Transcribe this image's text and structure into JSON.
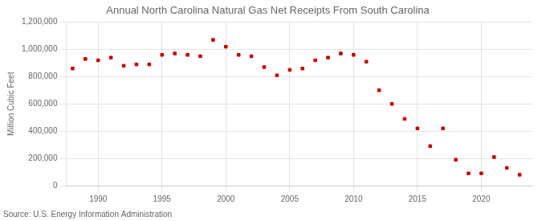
{
  "chart_data": {
    "type": "scatter",
    "title": "Annual North Carolina Natural Gas Net Receipts From South Carolina",
    "ylabel": "Million Cubic Feet",
    "source": "Source: U.S. Energy Information Administration",
    "x": [
      1988,
      1989,
      1990,
      1991,
      1992,
      1993,
      1994,
      1995,
      1996,
      1997,
      1998,
      1999,
      2000,
      2001,
      2002,
      2003,
      2004,
      2005,
      2006,
      2007,
      2008,
      2009,
      2010,
      2011,
      2012,
      2013,
      2014,
      2015,
      2016,
      2017,
      2018,
      2019,
      2020,
      2021,
      2022,
      2023
    ],
    "values": [
      860000,
      930000,
      920000,
      940000,
      880000,
      890000,
      890000,
      960000,
      970000,
      960000,
      950000,
      1070000,
      1020000,
      960000,
      950000,
      870000,
      810000,
      850000,
      860000,
      920000,
      940000,
      970000,
      960000,
      910000,
      700000,
      600000,
      490000,
      420000,
      290000,
      420000,
      190000,
      90000,
      90000,
      210000,
      130000,
      80000
    ],
    "color": "#cc0000",
    "marker": "square",
    "grid": true,
    "xlim": [
      1987.5,
      2024
    ],
    "xticks": [
      1990,
      1995,
      2000,
      2005,
      2010,
      2015,
      2020
    ],
    "ylim": [
      0,
      1200000
    ],
    "yticks": [
      0,
      {
        "value": 200000,
        "label": "200,000"
      },
      {
        "value": 400000,
        "label": "400,000"
      },
      {
        "value": 600000,
        "label": "600,000"
      },
      {
        "value": 800000,
        "label": "800,000"
      },
      {
        "value": 1000000,
        "label": "1,000,000"
      },
      {
        "value": 1200000,
        "label": "1,200,000"
      }
    ]
  }
}
